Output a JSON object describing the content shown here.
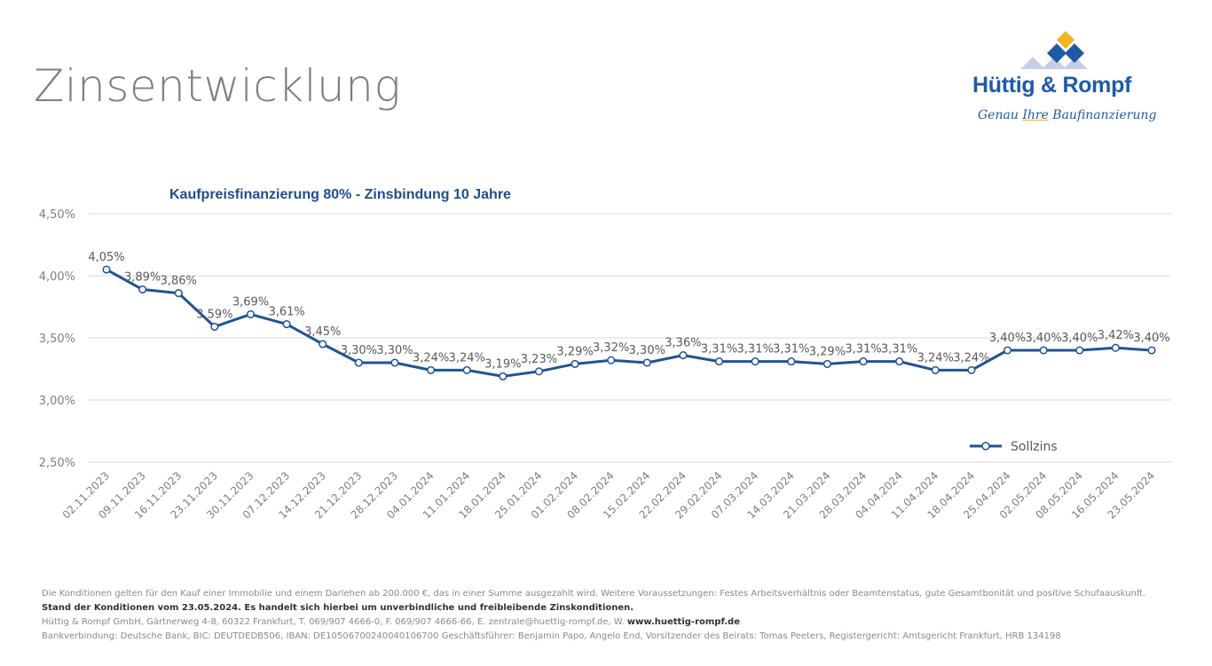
{
  "page": {
    "title": "Zinsentwicklung"
  },
  "logo": {
    "name": "Hüttig & Rompf",
    "slogan_pre": "Genau ",
    "slogan_hl": "Ihre",
    "slogan_post": " Baufinanzierung",
    "colors": {
      "dark": "#1f5aa6",
      "light": "#c7cfe6",
      "accent": "#f2b51c"
    }
  },
  "chart_data": {
    "type": "line",
    "title": "Kaufpreisfinanzierung 80%  - Zinsbindung 10 Jahre",
    "xlabel": "",
    "ylabel": "",
    "ylim": [
      2.5,
      4.5
    ],
    "yticks": [
      "2,50%",
      "3,00%",
      "3,50%",
      "4,00%",
      "4,50%"
    ],
    "ytick_values": [
      2.5,
      3.0,
      3.5,
      4.0,
      4.5
    ],
    "grid": true,
    "legend_position": "bottom-right",
    "line_color": "#1f5497",
    "categories": [
      "02.11.2023",
      "09.11.2023",
      "16.11.2023",
      "23.11.2023",
      "30.11.2023",
      "07.12.2023",
      "14.12.2023",
      "21.12.2023",
      "28.12.2023",
      "04.01.2024",
      "11.01.2024",
      "18.01.2024",
      "25.01.2024",
      "01.02.2024",
      "08.02.2024",
      "15.02.2024",
      "22.02.2024",
      "29.02.2024",
      "07.03.2024",
      "14.03.2024",
      "21.03.2024",
      "28.03.2024",
      "04.04.2024",
      "11.04.2024",
      "18.04.2024",
      "25.04.2024",
      "02.05.2024",
      "08.05.2024",
      "16.05.2024",
      "23.05.2024"
    ],
    "series": [
      {
        "name": "Sollzins",
        "values": [
          4.05,
          3.89,
          3.86,
          3.59,
          3.69,
          3.61,
          3.45,
          3.3,
          3.3,
          3.24,
          3.24,
          3.19,
          3.23,
          3.29,
          3.32,
          3.3,
          3.36,
          3.31,
          3.31,
          3.31,
          3.29,
          3.31,
          3.31,
          3.24,
          3.24,
          3.4,
          3.4,
          3.4,
          3.42,
          3.4
        ],
        "labels": [
          "4,05%",
          "3,89%",
          "3,86%",
          "3,59%",
          "3,69%",
          "3,61%",
          "3,45%",
          "3,30%",
          "3,30%",
          "3,24%",
          "3,24%",
          "3,19%",
          "3,23%",
          "3,29%",
          "3,32%",
          "3,30%",
          "3,36%",
          "3,31%",
          "3,31%",
          "3,31%",
          "3,29%",
          "3,31%",
          "3,31%",
          "3,24%",
          "3,24%",
          "3,40%",
          "3,40%",
          "3,40%",
          "3,42%",
          "3,40%"
        ]
      }
    ]
  },
  "footer": {
    "line1": "Die Konditionen gelten für den Kauf einer Immobilie und einem Darlehen ab 200.000 €, das in einer Summe ausgezahlt wird. Weitere Voraussetzungen: Festes Arbeitsverhältnis oder Beamtenstatus, gute Gesamtbonität und positive Schufaauskunft.",
    "line2": "Stand der Konditionen vom 23.05.2024. Es handelt sich hierbei um unverbindliche und freibleibende Zinskonditionen.",
    "line3_pre": "Hüttig & Rompf GmbH, Gärtnerweg 4-8, 60322 Frankfurt, T. 069/907 4666-0, F. 069/907 4666-66, E. zentrale@huettig-rompf.de, W. ",
    "line3_link": "www.huettig-rompf.de",
    "line4": "Bankverbindung: Deutsche Bank, BIC: DEUTDEDB506, IBAN: DE10506700240040106700 Geschäftsführer: Benjamin Papo, Angelo End, Vorsitzender des Beirats: Tomas Peeters, Registergericht: Amtsgericht Frankfurt, HRB 134198"
  }
}
